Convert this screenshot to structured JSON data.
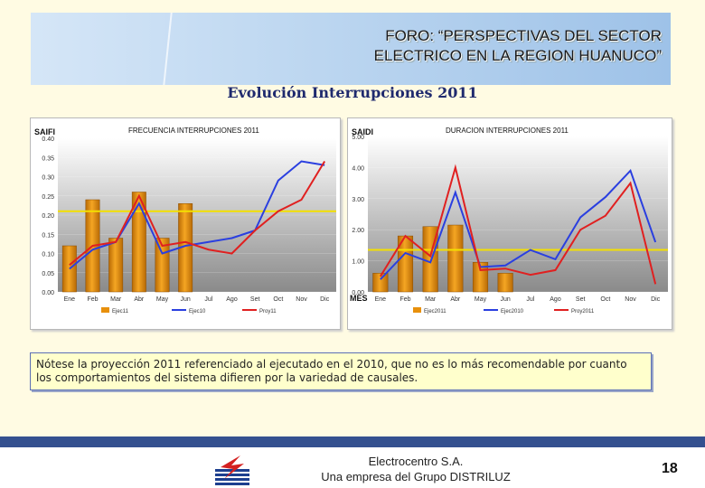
{
  "header": {
    "line1": "FORO: “PERSPECTIVAS DEL SECTOR",
    "line2": "ELECTRICO EN LA REGION HUANUCO”"
  },
  "subtitle": "Evolución  Interrupciones 2011",
  "note": "Nótese la proyección 2011 referenciado al ejecutado en el 2010, que no es lo más recomendable por cuanto los comportamientos del sistema difieren por la variedad de causales.",
  "footer": {
    "company": "Electrocentro S.A.",
    "group": "Una empresa del Grupo DISTRILUZ",
    "page": "18"
  },
  "colors": {
    "bar": "#e8900c",
    "eje2010": "#2a3fe0",
    "proy2011": "#e02020",
    "meta": "#f4e000",
    "header": "#bcd6f0",
    "footer": "#34508f"
  },
  "chart_data": [
    {
      "type": "bar",
      "title": "FRECUENCIA INTERRUPCIONES 2011",
      "ylabel": "SAIFI",
      "categories": [
        "Ene",
        "Feb",
        "Mar",
        "Abr",
        "May",
        "Jun",
        "Jul",
        "Ago",
        "Set",
        "Oct",
        "Nov",
        "Dic"
      ],
      "yticks": [
        "0.00",
        "0.05",
        "0.10",
        "0.15",
        "0.20",
        "0.25",
        "0.30",
        "0.35",
        "0.40"
      ],
      "ylim": [
        0,
        0.4
      ],
      "bar_series": {
        "name": "Ejec11",
        "values": [
          0.12,
          0.24,
          0.14,
          0.26,
          0.14,
          0.23,
          null,
          null,
          null,
          null,
          null,
          null
        ]
      },
      "series": [
        {
          "name": "Ejec10",
          "values": [
            0.06,
            0.11,
            0.13,
            0.23,
            0.1,
            0.12,
            0.13,
            0.14,
            0.16,
            0.29,
            0.34,
            0.33
          ]
        },
        {
          "name": "Proy11",
          "values": [
            0.07,
            0.12,
            0.13,
            0.25,
            0.12,
            0.13,
            0.11,
            0.1,
            0.16,
            0.21,
            0.24,
            0.34
          ]
        }
      ],
      "meta": 0.21,
      "grid": true,
      "legend": "bottom"
    },
    {
      "type": "bar",
      "title": "DURACION INTERRUPCIONES 2011",
      "ylabel": "SAIDI",
      "xlabel": "MES",
      "categories": [
        "Ene",
        "Feb",
        "Mar",
        "Abr",
        "May",
        "Jun",
        "Jul",
        "Ago",
        "Set",
        "Oct",
        "Nov",
        "Dic"
      ],
      "yticks": [
        "0.00",
        "1.00",
        "2.00",
        "3.00",
        "4.00",
        "5.00"
      ],
      "ylim": [
        0,
        5.0
      ],
      "bar_series": {
        "name": "Ejec2011",
        "values": [
          0.6,
          1.8,
          2.1,
          2.15,
          0.95,
          0.6,
          null,
          null,
          null,
          null,
          null,
          null
        ]
      },
      "series": [
        {
          "name": "Ejec2010",
          "values": [
            0.4,
            1.25,
            0.95,
            3.2,
            0.8,
            0.85,
            1.35,
            1.05,
            2.4,
            3.05,
            3.9,
            1.6
          ]
        },
        {
          "name": "Proy2011",
          "values": [
            0.5,
            1.8,
            1.15,
            4.0,
            0.7,
            0.75,
            0.55,
            0.7,
            2.0,
            2.45,
            3.5,
            0.25
          ]
        }
      ],
      "meta": 1.35,
      "grid": true,
      "legend": "bottom"
    }
  ]
}
